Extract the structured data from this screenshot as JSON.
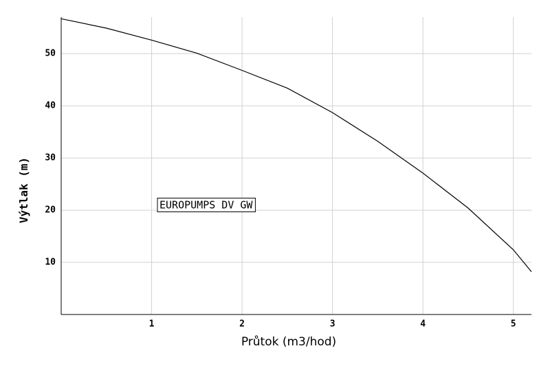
{
  "chart_data": {
    "type": "line",
    "xlabel": "Průtok (m3/hod)",
    "ylabel": "Výtlak (m)",
    "annotation": "EUROPUMPS DV GW",
    "x": [
      0,
      0.5,
      1,
      1.5,
      2,
      2.5,
      3,
      3.5,
      4,
      4.5,
      5,
      5.2
    ],
    "values": [
      56.7,
      54.9,
      52.6,
      50.1,
      46.8,
      43.4,
      38.7,
      33.2,
      27.1,
      20.4,
      12.4,
      8.2
    ],
    "color": "#000000",
    "xlim": [
      0,
      5.2
    ],
    "xticks": [
      1,
      2,
      3,
      4,
      5
    ],
    "ylim": [
      0,
      57
    ],
    "yticks": [
      10,
      20,
      30,
      40,
      50
    ],
    "grid": true
  }
}
